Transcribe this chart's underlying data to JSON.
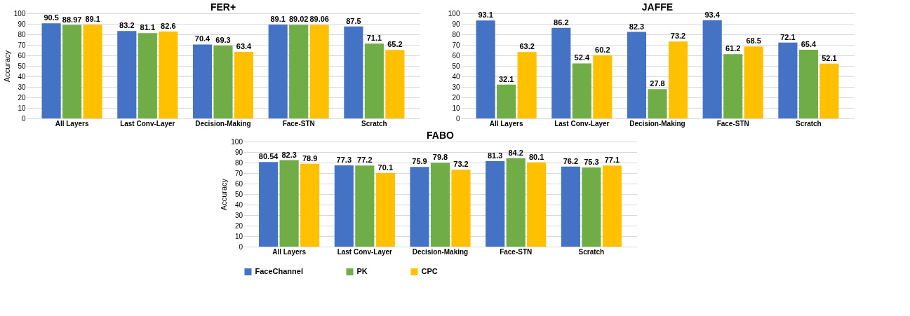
{
  "chart_data": [
    {
      "type": "bar",
      "title": "FER+",
      "ylabel": "Accuracy",
      "categories": [
        "All Layers",
        "Last Conv-Layer",
        "Decision-Making",
        "Face-STN",
        "Scratch"
      ],
      "series": [
        {
          "color": "#4472c4",
          "values": [
            90.5,
            83.2,
            70.4,
            89.1,
            87.5
          ]
        },
        {
          "color": "#70ad47",
          "values": [
            88.97,
            81.1,
            69.3,
            89.02,
            71.1
          ]
        },
        {
          "color": "#ffc000",
          "values": [
            89.1,
            82.6,
            63.4,
            89.06,
            65.2
          ]
        }
      ],
      "ylim": [
        0,
        100
      ],
      "yticks": [
        0,
        10,
        20,
        30,
        40,
        50,
        60,
        70,
        80,
        90,
        100
      ],
      "grid": "y",
      "data_labels": true,
      "legend": false
    },
    {
      "type": "bar",
      "title": "JAFFE",
      "categories": [
        "All Layers",
        "Last Conv-Layer",
        "Decision-Making",
        "Face-STN",
        "Scratch"
      ],
      "series": [
        {
          "color": "#4472c4",
          "values": [
            93.1,
            86.2,
            82.3,
            93.4,
            72.1
          ]
        },
        {
          "color": "#70ad47",
          "values": [
            32.1,
            52.4,
            27.8,
            61.2,
            65.4
          ]
        },
        {
          "color": "#ffc000",
          "values": [
            63.2,
            60.2,
            73.2,
            68.5,
            52.1
          ]
        }
      ],
      "ylim": [
        0,
        100
      ],
      "yticks": [
        0,
        10,
        20,
        30,
        40,
        50,
        60,
        70,
        80,
        90,
        100
      ],
      "grid": "y",
      "data_labels": true,
      "legend": false
    },
    {
      "type": "bar",
      "title": "FABO",
      "ylabel": "Accuracy",
      "categories": [
        "All Layers",
        "Last Conv-Layer",
        "Decision-Making",
        "Face-STN",
        "Scratch"
      ],
      "series": [
        {
          "name": "FaceChannel",
          "color": "#4472c4",
          "values": [
            80.54,
            77.3,
            75.9,
            81.3,
            76.2
          ]
        },
        {
          "name": "PK",
          "color": "#70ad47",
          "values": [
            82.3,
            77.2,
            79.8,
            84.2,
            75.3
          ]
        },
        {
          "name": "CPC",
          "color": "#ffc000",
          "values": [
            78.9,
            70.1,
            73.2,
            80.1,
            77.1
          ]
        }
      ],
      "ylim": [
        0,
        100
      ],
      "yticks": [
        0,
        10,
        20,
        30,
        40,
        50,
        60,
        70,
        80,
        90,
        100
      ],
      "grid": "y",
      "data_labels": true,
      "legend": "bottom"
    }
  ]
}
